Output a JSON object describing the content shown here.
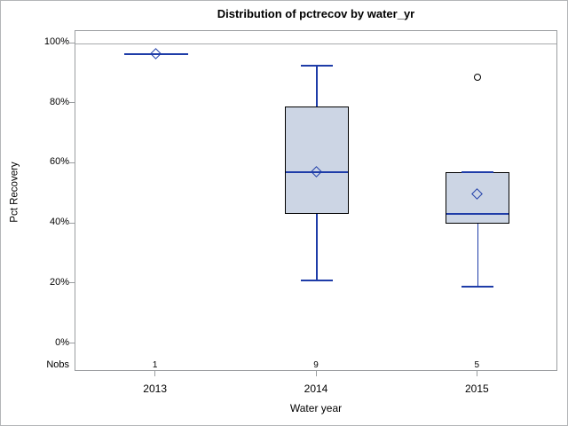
{
  "chart_data": {
    "type": "box",
    "title": "Distribution of pctrecov by water_yr",
    "xlabel": "Water year",
    "ylabel": "Pct Recovery",
    "ylim": [
      0,
      100
    ],
    "y_ticks": [
      0,
      20,
      40,
      60,
      80,
      100
    ],
    "y_tick_suffix": "%",
    "grid": false,
    "refline_y": 100,
    "legend": "none",
    "nobs_row_label": "Nobs",
    "categories": [
      "2013",
      "2014",
      "2015"
    ],
    "series": [
      {
        "category": "2013",
        "nobs": 1,
        "low": 96.3,
        "q1": 96.3,
        "median": 96.3,
        "q3": 96.3,
        "high": 96.3,
        "mean": 96.3,
        "outliers": []
      },
      {
        "category": "2014",
        "nobs": 9,
        "low": 21,
        "q1": 43,
        "median": 57,
        "q3": 79,
        "high": 92.5,
        "mean": 57,
        "outliers": []
      },
      {
        "category": "2015",
        "nobs": 5,
        "low": 19,
        "q1": 40,
        "median": 43,
        "q3": 57,
        "high": 57,
        "mean": 49.5,
        "outliers": [
          88.5
        ]
      }
    ],
    "colors": {
      "box_fill": "#ccd5e4",
      "box_border": "#000000",
      "line_blue": "#1e3ca8",
      "axis": "#9a9da0",
      "refline": "#a7aaac",
      "outlier": "#000000",
      "text": "#000000"
    }
  }
}
